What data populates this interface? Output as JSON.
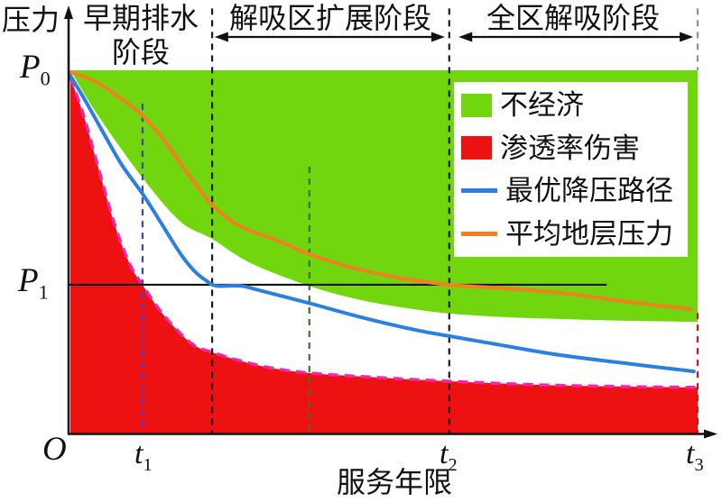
{
  "figure_labels": {
    "y_axis_label": "压力",
    "x_axis_label": "服务年限",
    "origin_label": "O",
    "p0": {
      "base": "P",
      "sub": "0"
    },
    "p1": {
      "base": "P",
      "sub": "1"
    },
    "t1": {
      "base": "t",
      "sub": "1"
    },
    "t2": {
      "base": "t",
      "sub": "2"
    },
    "t3": {
      "base": "t",
      "sub": "3"
    }
  },
  "stages": [
    {
      "label": "早期排水阶段",
      "x_start": 0.0,
      "x_end": 0.226,
      "arrow": false
    },
    {
      "label": "解吸区扩展阶段",
      "x_start": 0.23,
      "x_end": 0.597,
      "arrow": true
    },
    {
      "label": "全区解吸阶段",
      "x_start": 0.619,
      "x_end": 0.993,
      "arrow": true
    }
  ],
  "legend": {
    "items": [
      {
        "label": "不经济",
        "swatch": "rect",
        "color": "#72d60e"
      },
      {
        "label": "渗透率伤害",
        "swatch": "rect",
        "color": "#ee1111"
      },
      {
        "label": "最优降压路径",
        "swatch": "line",
        "color": "#2b7fe0"
      },
      {
        "label": "平均地层压力",
        "swatch": "line",
        "color": "#f08020"
      }
    ]
  },
  "chart_data": {
    "type": "area",
    "title": "",
    "xlabel": "服务年限",
    "ylabel": "压力",
    "x_range": [
      0,
      1
    ],
    "y_range": [
      0,
      1
    ],
    "grid": false,
    "legend_position": "inside-top-right",
    "x_ticks": [
      {
        "label": "t1",
        "x": 0.115
      },
      {
        "label": "t2",
        "x": 0.604
      },
      {
        "label": "t3",
        "x": 1.0
      }
    ],
    "y_ticks": [
      {
        "label": "P0",
        "p": 1.0
      },
      {
        "label": "P1",
        "p": 0.411
      }
    ],
    "regions": [
      {
        "name": "不经济",
        "color": "#72d60e",
        "upper_edge_p": 1.0,
        "lower_boundary": [
          [
            0,
            1.0
          ],
          [
            0.046,
            0.871
          ],
          [
            0.118,
            0.698
          ],
          [
            0.176,
            0.584
          ],
          [
            0.226,
            0.537
          ],
          [
            0.288,
            0.47
          ],
          [
            0.384,
            0.406
          ],
          [
            0.463,
            0.369
          ],
          [
            0.535,
            0.347
          ],
          [
            0.604,
            0.332
          ],
          [
            0.694,
            0.322
          ],
          [
            0.78,
            0.317
          ],
          [
            0.896,
            0.312
          ],
          [
            1.0,
            0.309
          ]
        ]
      },
      {
        "name": "渗透率伤害",
        "color": "#ee1111",
        "boundary_color": "#ff22a8",
        "boundary_style": "dashed",
        "bottom_edge_p": 0.0,
        "upper_boundary": [
          [
            0,
            0.98
          ],
          [
            0.022,
            0.871
          ],
          [
            0.046,
            0.723
          ],
          [
            0.072,
            0.569
          ],
          [
            0.096,
            0.463
          ],
          [
            0.115,
            0.411
          ],
          [
            0.14,
            0.347
          ],
          [
            0.168,
            0.29
          ],
          [
            0.197,
            0.245
          ],
          [
            0.227,
            0.225
          ],
          [
            0.269,
            0.203
          ],
          [
            0.319,
            0.183
          ],
          [
            0.384,
            0.168
          ],
          [
            0.493,
            0.156
          ],
          [
            0.604,
            0.146
          ],
          [
            0.751,
            0.136
          ],
          [
            0.896,
            0.131
          ],
          [
            1.0,
            0.129
          ]
        ]
      }
    ],
    "series": [
      {
        "name": "最优降压路径",
        "color": "#2b7fe0",
        "width": 4,
        "points": [
          [
            0,
            0.985
          ],
          [
            0.024,
            0.916
          ],
          [
            0.053,
            0.827
          ],
          [
            0.082,
            0.74
          ],
          [
            0.115,
            0.661
          ],
          [
            0.147,
            0.574
          ],
          [
            0.176,
            0.495
          ],
          [
            0.197,
            0.45
          ],
          [
            0.216,
            0.423
          ],
          [
            0.233,
            0.408
          ],
          [
            0.271,
            0.408
          ],
          [
            0.305,
            0.394
          ],
          [
            0.384,
            0.359
          ],
          [
            0.463,
            0.322
          ],
          [
            0.55,
            0.287
          ],
          [
            0.604,
            0.27
          ],
          [
            0.694,
            0.243
          ],
          [
            0.78,
            0.218
          ],
          [
            0.896,
            0.193
          ],
          [
            0.994,
            0.173
          ]
        ]
      },
      {
        "name": "平均地层压力",
        "color": "#f08020",
        "width": 4,
        "points": [
          [
            0,
            0.995
          ],
          [
            0.039,
            0.97
          ],
          [
            0.082,
            0.921
          ],
          [
            0.118,
            0.871
          ],
          [
            0.154,
            0.797
          ],
          [
            0.19,
            0.71
          ],
          [
            0.226,
            0.631
          ],
          [
            0.269,
            0.574
          ],
          [
            0.334,
            0.53
          ],
          [
            0.384,
            0.493
          ],
          [
            0.449,
            0.458
          ],
          [
            0.521,
            0.431
          ],
          [
            0.604,
            0.411
          ],
          [
            0.694,
            0.401
          ],
          [
            0.78,
            0.389
          ],
          [
            0.881,
            0.366
          ],
          [
            0.99,
            0.344
          ]
        ]
      }
    ],
    "reference_lines": [
      {
        "label": "P1",
        "p": 0.411,
        "x_start": 0.0,
        "x_end": 0.855,
        "color": "#111111"
      }
    ],
    "dividers": [
      {
        "x": 0.226,
        "p_top": 1.17,
        "p_bottom": 0.0,
        "color": "#1a1a1a",
        "role": "stage-boundary-1"
      },
      {
        "x": 0.604,
        "p_top": 1.17,
        "p_bottom": 0.0,
        "color": "#1a1a1a",
        "role": "stage-boundary-t2"
      },
      {
        "x": 0.115,
        "p_top": 0.908,
        "p_bottom": 0.0,
        "color": "#4040cf",
        "role": "t1-marker"
      },
      {
        "x": 0.381,
        "p_top": 0.735,
        "p_bottom": 0.0,
        "color": "#337733",
        "role": "mid-marker"
      },
      {
        "x": 1.0,
        "p_top": 1.17,
        "p_bottom": 1.0,
        "color": "#909090",
        "role": "t3-upper"
      },
      {
        "x": 1.0,
        "p_top": 0.334,
        "p_bottom": 0.0,
        "color": "#d01313",
        "role": "t3-lower"
      }
    ]
  }
}
